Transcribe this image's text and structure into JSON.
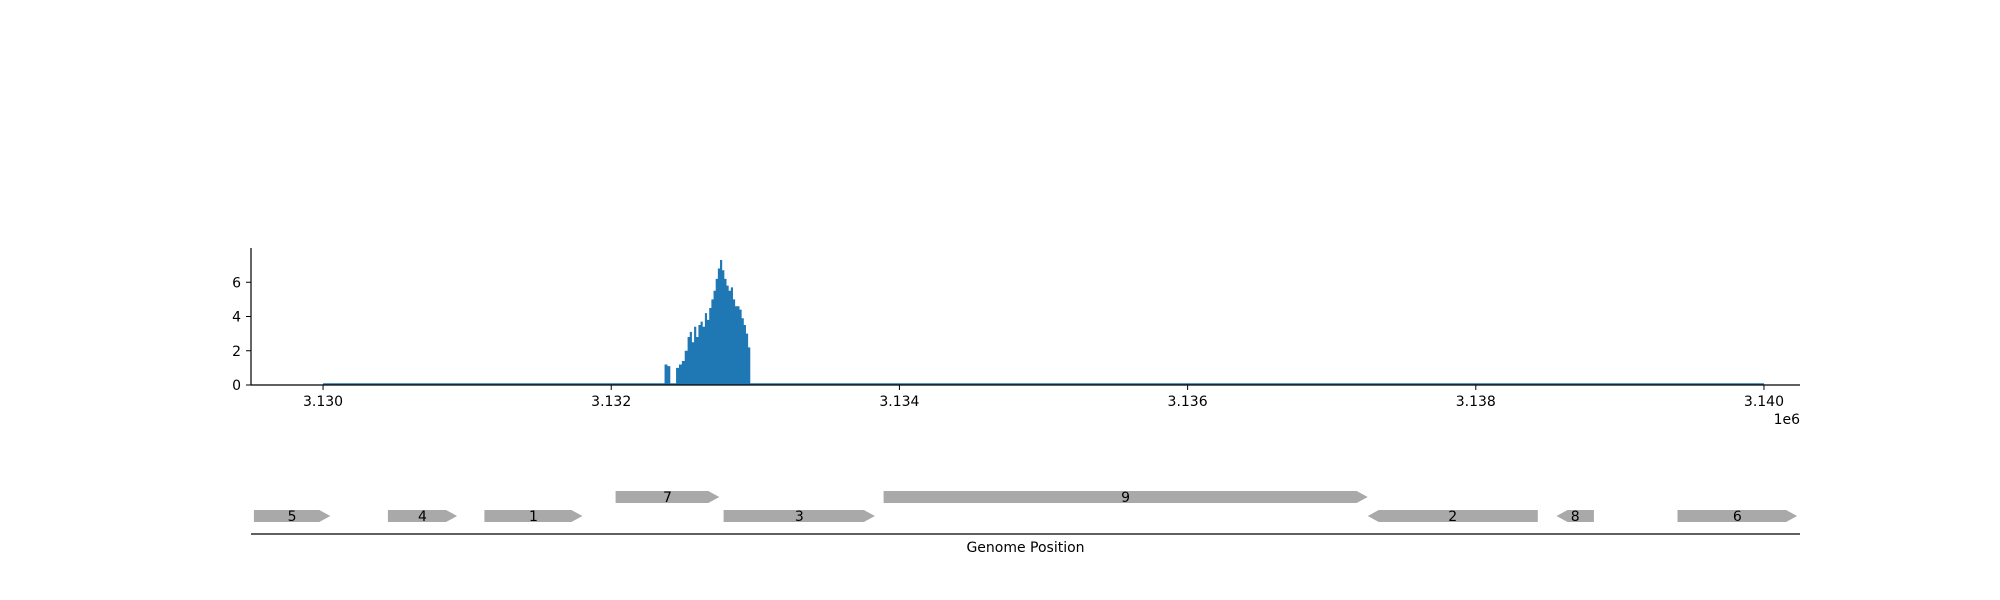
{
  "chart_data": [
    {
      "type": "area",
      "title": "",
      "xlabel": "",
      "ylabel": "",
      "xlim": [
        3129500,
        3140250
      ],
      "ylim": [
        0,
        8
      ],
      "xticks": [
        3130000,
        3132000,
        3134000,
        3136000,
        3138000,
        3140000
      ],
      "xtick_labels": [
        "3.130",
        "3.132",
        "3.134",
        "3.136",
        "3.138",
        "3.140"
      ],
      "x_offset_label": "1e6",
      "yticks": [
        0,
        2,
        4,
        6
      ],
      "ytick_labels": [
        "0",
        "2",
        "4",
        "6"
      ],
      "grid": false,
      "color": "#1f77b4",
      "x": [
        3130000,
        3132350,
        3132370,
        3132390,
        3132410,
        3132430,
        3132450,
        3132470,
        3132490,
        3132510,
        3132530,
        3132545,
        3132560,
        3132575,
        3132590,
        3132605,
        3132620,
        3132635,
        3132650,
        3132665,
        3132680,
        3132695,
        3132710,
        3132725,
        3132740,
        3132755,
        3132770,
        3132785,
        3132800,
        3132815,
        3132830,
        3132845,
        3132860,
        3132875,
        3132890,
        3132905,
        3132920,
        3132935,
        3132950,
        3132965,
        3140000
      ],
      "y": [
        0,
        0,
        1.2,
        1.1,
        0,
        0,
        1.0,
        1.2,
        1.4,
        2.0,
        2.8,
        3.1,
        2.5,
        3.4,
        2.8,
        3.5,
        3.7,
        3.4,
        4.2,
        3.8,
        4.5,
        5.0,
        5.5,
        6.2,
        6.8,
        7.3,
        6.7,
        6.2,
        5.8,
        5.5,
        5.7,
        5.0,
        4.6,
        4.6,
        4.4,
        3.9,
        3.5,
        3.0,
        2.2,
        0,
        0
      ]
    },
    {
      "type": "genes",
      "xlabel": "Genome Position",
      "genes": [
        {
          "label": "5",
          "start": 3129520,
          "end": 3130050,
          "strand": "+",
          "row": 0
        },
        {
          "label": "4",
          "start": 3130450,
          "end": 3130930,
          "strand": "+",
          "row": 0
        },
        {
          "label": "1",
          "start": 3131120,
          "end": 3131800,
          "strand": "+",
          "row": 0
        },
        {
          "label": "7",
          "start": 3132030,
          "end": 3132750,
          "strand": "+",
          "row": 1
        },
        {
          "label": "3",
          "start": 3132780,
          "end": 3133830,
          "strand": "+",
          "row": 0
        },
        {
          "label": "9",
          "start": 3133890,
          "end": 3137250,
          "strand": "+",
          "row": 1
        },
        {
          "label": "2",
          "start": 3137250,
          "end": 3138430,
          "strand": "-",
          "row": 0
        },
        {
          "label": "8",
          "start": 3138560,
          "end": 3138820,
          "strand": "-",
          "row": 0
        },
        {
          "label": "6",
          "start": 3139400,
          "end": 3140230,
          "strand": "+",
          "row": 0
        }
      ]
    }
  ]
}
